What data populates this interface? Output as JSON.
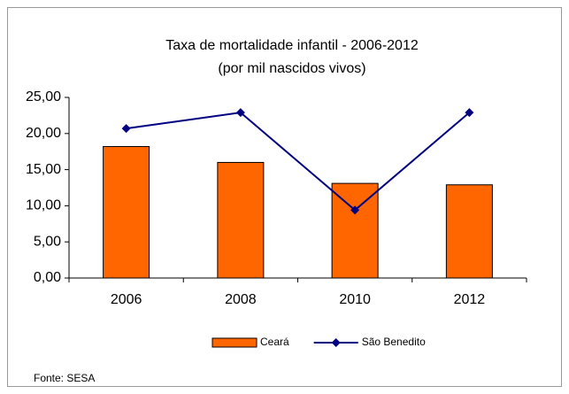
{
  "chart_data": {
    "type": "bar",
    "title": "Taxa de mortalidade infantil - 2006-2012",
    "subtitle": "(por mil nascidos vivos)",
    "categories": [
      "2006",
      "2008",
      "2010",
      "2012"
    ],
    "series": [
      {
        "name": "Ceará",
        "type": "bar",
        "color": "#ff6600",
        "values": [
          18.2,
          16.0,
          13.1,
          12.9
        ]
      },
      {
        "name": "São Benedito",
        "type": "line",
        "color": "#000080",
        "values": [
          20.7,
          22.9,
          9.4,
          22.9
        ]
      }
    ],
    "ylim": [
      0,
      25
    ],
    "yticks": [
      {
        "value": 0,
        "label": "0,00"
      },
      {
        "value": 5,
        "label": "5,00"
      },
      {
        "value": 10,
        "label": "10,00"
      },
      {
        "value": 15,
        "label": "15,00"
      },
      {
        "value": 20,
        "label": "20,00"
      },
      {
        "value": 25,
        "label": "25,00"
      }
    ],
    "grid": false,
    "legend": "bottom",
    "source": "Fonte: SESA"
  }
}
